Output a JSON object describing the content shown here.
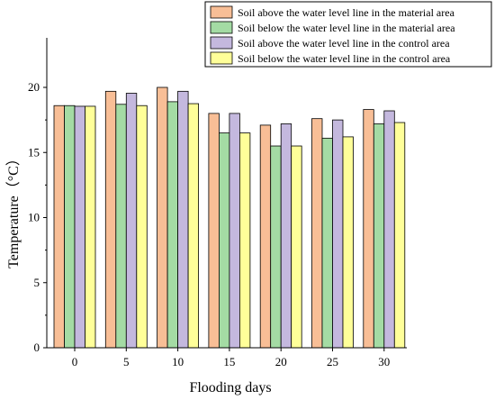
{
  "chart_data": {
    "type": "bar",
    "title": "",
    "xlabel": "Flooding days",
    "ylabel": "Temperature（°C）",
    "categories": [
      "0",
      "5",
      "10",
      "15",
      "20",
      "25",
      "30"
    ],
    "ylim": [
      0,
      22
    ],
    "yticks": [
      0,
      5,
      10,
      15,
      20
    ],
    "grid": false,
    "legend_position": "top-right",
    "series": [
      {
        "name": "Soil above the water level line in the material area",
        "color": "#F8BE96",
        "values": [
          18.6,
          19.7,
          20.0,
          18.0,
          17.1,
          17.6,
          18.3
        ]
      },
      {
        "name": "Soil below the water level line in the material area",
        "color": "#A4DBA4",
        "values": [
          18.6,
          18.7,
          18.9,
          16.5,
          15.5,
          16.1,
          17.2
        ]
      },
      {
        "name": "Soil above the water level line in the control area",
        "color": "#C4B8DE",
        "values": [
          18.55,
          19.55,
          19.7,
          18.0,
          17.2,
          17.5,
          18.2
        ]
      },
      {
        "name": "Soil below the water level line in the control area",
        "color": "#FFFF99",
        "values": [
          18.55,
          18.6,
          18.75,
          16.5,
          15.5,
          16.2,
          17.3
        ]
      }
    ]
  }
}
